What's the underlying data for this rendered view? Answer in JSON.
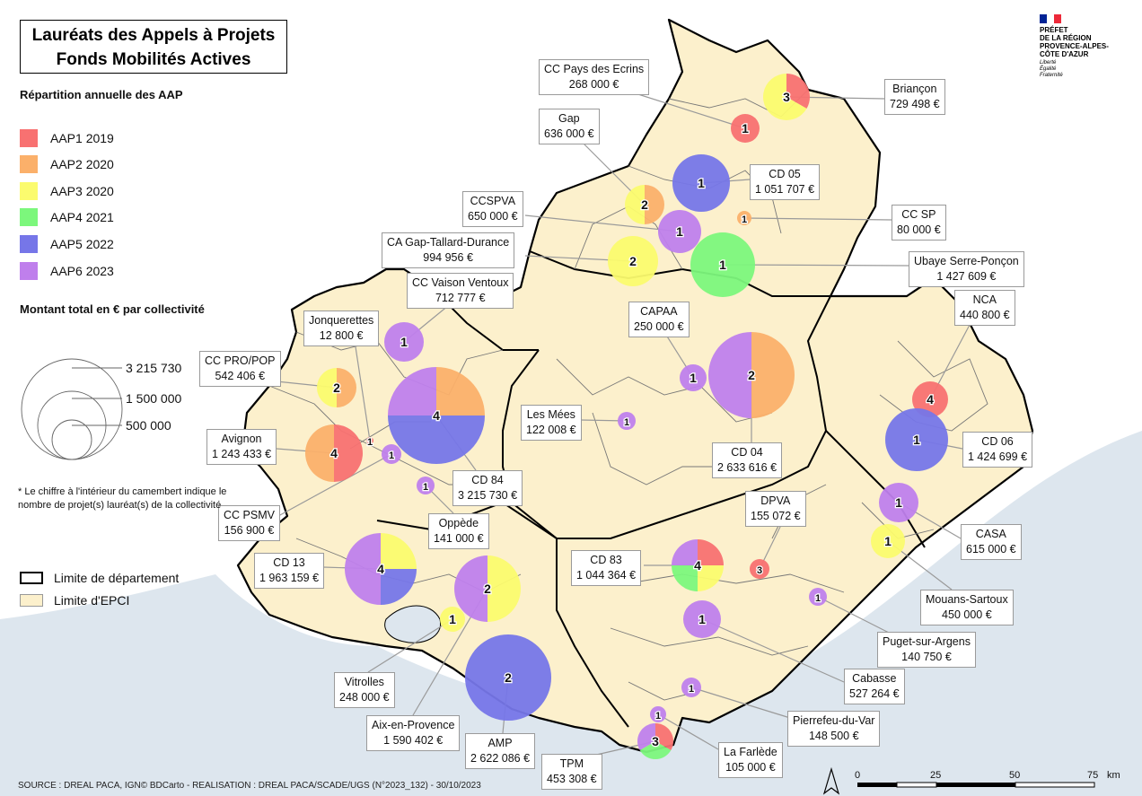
{
  "title": {
    "line1": "Lauréats des Appels à Projets",
    "line2": "Fonds Mobilités Actives"
  },
  "legend": {
    "series_heading": "Répartition annuelle des AAP",
    "series": [
      {
        "key": "AAP1",
        "label": "AAP1 2019",
        "color": "#f87171"
      },
      {
        "key": "AAP2",
        "label": "AAP2 2020",
        "color": "#fbb06a"
      },
      {
        "key": "AAP3",
        "label": "AAP3 2020",
        "color": "#fbfb6e"
      },
      {
        "key": "AAP4",
        "label": "AAP4 2021",
        "color": "#7cf77c"
      },
      {
        "key": "AAP5",
        "label": "AAP5 2022",
        "color": "#7676e8"
      },
      {
        "key": "AAP6",
        "label": "AAP6 2023",
        "color": "#bf7fec"
      }
    ],
    "size_heading": "Montant total en € par collectivité",
    "size_values": [
      {
        "value": 3215730,
        "label": "3 215 730"
      },
      {
        "value": 1500000,
        "label": "1 500 000"
      },
      {
        "value": 500000,
        "label": "500 000"
      }
    ],
    "note": "* Le chiffre à l'intérieur du camembert indique le nombre de projet(s) lauréat(s) de la collectivité",
    "limits": [
      {
        "label": "Limite de département"
      },
      {
        "label": "Limite d'EPCI"
      }
    ]
  },
  "logo": {
    "lines": [
      "PRÉFET",
      "DE LA RÉGION",
      "PROVENCE-ALPES-",
      "CÔTE D'AZUR"
    ],
    "motto": [
      "Liberté",
      "Égalité",
      "Fraternité"
    ]
  },
  "source": "SOURCE : DREAL PACA, IGN© BDCarto - REALISATION : DREAL PACA/SCADE/UGS (N°2023_132) - 30/10/2023",
  "scale": {
    "ticks": [
      "0",
      "25",
      "50",
      "75"
    ],
    "unit": "km"
  },
  "colors": {
    "land": "#fcf0cc",
    "sea": "#dde6ee",
    "leader": "#9a9a9a"
  },
  "collectivites": [
    {
      "name": "CC Pays des Ecrins",
      "amount": "268 000 €",
      "projects": 1,
      "aap": {
        "AAP1": 1
      }
    },
    {
      "name": "Briançon",
      "amount": "729 498 €",
      "projects": 3,
      "aap": {
        "AAP1": 1,
        "AAP3": 2
      }
    },
    {
      "name": "Gap",
      "amount": "636 000 €",
      "projects": 2,
      "aap": {
        "AAP2": 1,
        "AAP3": 1
      }
    },
    {
      "name": "CD 05",
      "amount": "1 051 707 €",
      "projects": 1,
      "aap": {
        "AAP5": 1
      }
    },
    {
      "name": "CC SP",
      "amount": "80 000 €",
      "projects": 1,
      "aap": {
        "AAP2": 1
      }
    },
    {
      "name": "CCSPVA",
      "amount": "650 000 €",
      "projects": 1,
      "aap": {
        "AAP6": 1
      }
    },
    {
      "name": "CA Gap-Tallard-Durance",
      "amount": "994 956 €",
      "projects": 2,
      "aap": {
        "AAP3": 2
      }
    },
    {
      "name": "Ubaye Serre-Ponçon",
      "amount": "1 427 609 €",
      "projects": 1,
      "aap": {
        "AAP4": 1
      }
    },
    {
      "name": "CC Vaison Ventoux",
      "amount": "712 777 €",
      "projects": 1,
      "aap": {
        "AAP6": 1
      }
    },
    {
      "name": "Jonquerettes",
      "amount": "12 800 €",
      "projects": 1,
      "aap": {
        "AAP1": 1
      }
    },
    {
      "name": "CAPAA",
      "amount": "250 000 €",
      "projects": 1,
      "aap": {
        "AAP6": 1
      }
    },
    {
      "name": "NCA",
      "amount": "440 800 €",
      "projects": 4,
      "aap": {
        "AAP1": 4
      }
    },
    {
      "name": "CC PRO/POP",
      "amount": "542 406 €",
      "projects": 2,
      "aap": {
        "AAP2": 1,
        "AAP3": 1
      }
    },
    {
      "name": "Les Mées",
      "amount": "122 008 €",
      "projects": 1,
      "aap": {
        "AAP6": 1
      }
    },
    {
      "name": "Avignon",
      "amount": "1 243 433 €",
      "projects": 4,
      "aap": {
        "AAP1": 2,
        "AAP2": 2
      }
    },
    {
      "name": "CD 04",
      "amount": "2 633 616 €",
      "projects": 2,
      "aap": {
        "AAP2": 1,
        "AAP6": 1
      }
    },
    {
      "name": "CD 06",
      "amount": "1 424 699 €",
      "projects": 1,
      "aap": {
        "AAP5": 1
      }
    },
    {
      "name": "CD 84",
      "amount": "3 215 730 €",
      "projects": 4,
      "aap": {
        "AAP2": 1,
        "AAP5": 2,
        "AAP6": 1
      }
    },
    {
      "name": "CC PSMV",
      "amount": "156 900 €",
      "projects": 1,
      "aap": {
        "AAP6": 1
      }
    },
    {
      "name": "Oppède",
      "amount": "141 000 €",
      "projects": 1,
      "aap": {
        "AAP6": 1
      }
    },
    {
      "name": "DPVA",
      "amount": "155 072 €",
      "projects": 3,
      "aap": {
        "AAP1": 3
      }
    },
    {
      "name": "CASA",
      "amount": "615 000 €",
      "projects": 1,
      "aap": {
        "AAP6": 1
      }
    },
    {
      "name": "CD 13",
      "amount": "1 963 159 €",
      "projects": 4,
      "aap": {
        "AAP3": 1,
        "AAP5": 1,
        "AAP6": 2
      }
    },
    {
      "name": "CD 83",
      "amount": "1 044 364 €",
      "projects": 4,
      "aap": {
        "AAP1": 1,
        "AAP3": 1,
        "AAP4": 1,
        "AAP6": 1
      }
    },
    {
      "name": "Mouans-Sartoux",
      "amount": "450 000 €",
      "projects": 1,
      "aap": {
        "AAP3": 1
      }
    },
    {
      "name": "Puget-sur-Argens",
      "amount": "140 750 €",
      "projects": 1,
      "aap": {
        "AAP6": 1
      }
    },
    {
      "name": "Vitrolles",
      "amount": "248 000 €",
      "projects": 1,
      "aap": {
        "AAP3": 1
      }
    },
    {
      "name": "Cabasse",
      "amount": "527 264 €",
      "projects": 1,
      "aap": {
        "AAP6": 1
      }
    },
    {
      "name": "Aix-en-Provence",
      "amount": "1 590 402 €",
      "projects": 2,
      "aap": {
        "AAP3": 1,
        "AAP6": 1
      }
    },
    {
      "name": "Pierrefeu-du-Var",
      "amount": "148 500 €",
      "projects": 1,
      "aap": {
        "AAP6": 1
      }
    },
    {
      "name": "AMP",
      "amount": "2 622 086 €",
      "projects": 2,
      "aap": {
        "AAP5": 2
      }
    },
    {
      "name": "TPM",
      "amount": "453 308 €",
      "projects": 3,
      "aap": {
        "AAP1": 1,
        "AAP4": 1,
        "AAP6": 1
      }
    },
    {
      "name": "La Farlède",
      "amount": "105 000 €",
      "projects": 1,
      "aap": {
        "AAP6": 1
      }
    }
  ]
}
